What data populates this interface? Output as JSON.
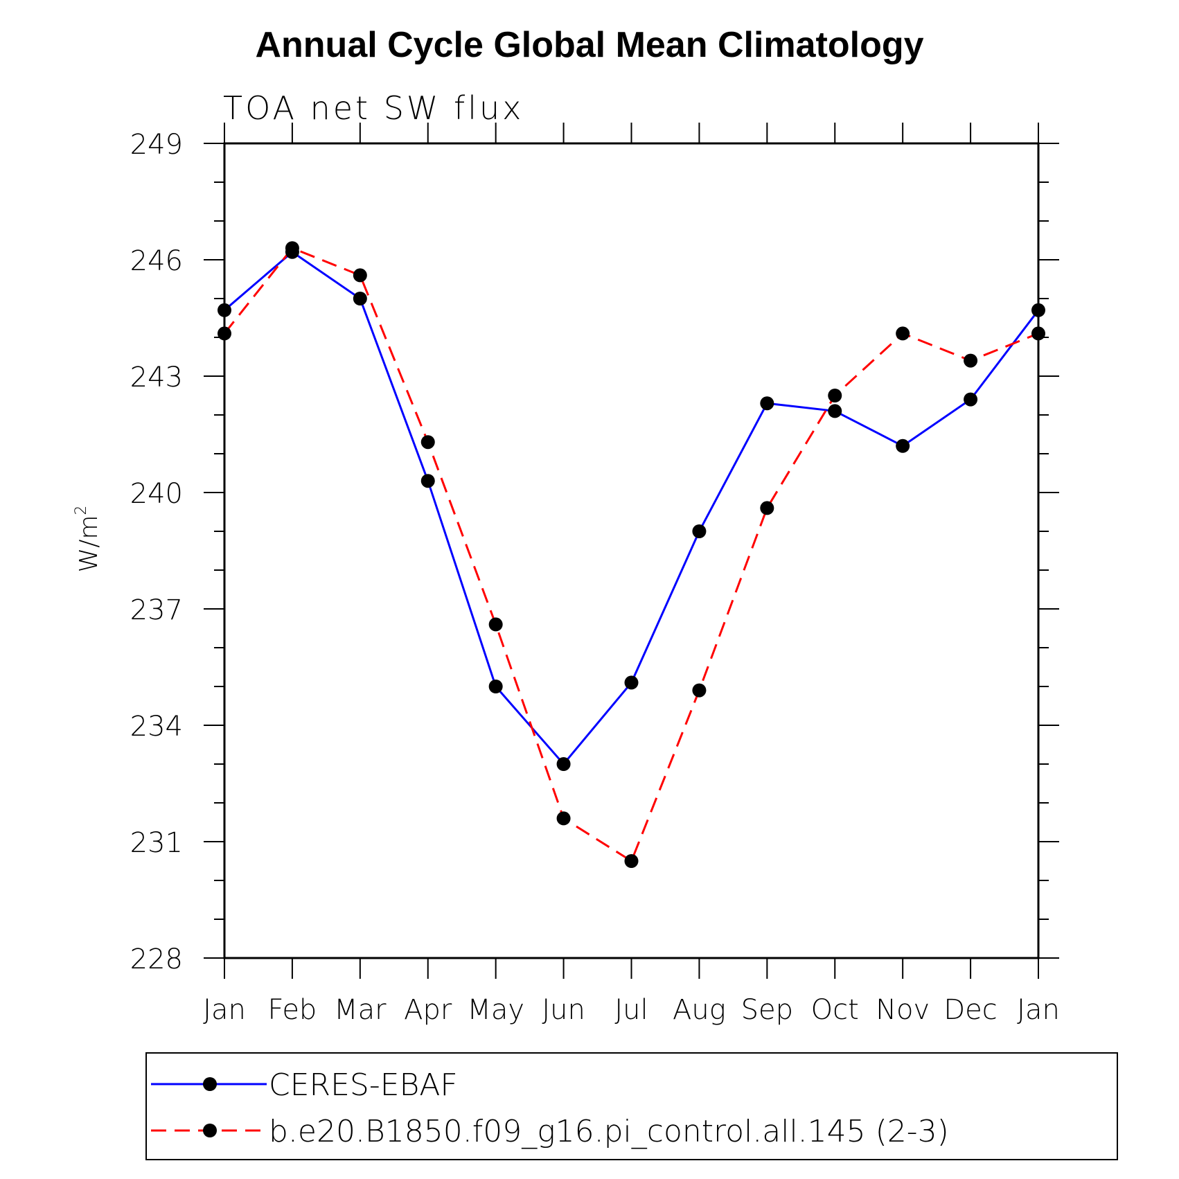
{
  "chart_data": {
    "type": "line",
    "title": "Annual Cycle Global Mean Climatology",
    "subtitle": "TOA net SW flux",
    "ylabel": "W/m",
    "ylabel_superscript": "2",
    "ylim": [
      228,
      249
    ],
    "yticks": [
      228,
      231,
      234,
      237,
      240,
      243,
      246,
      249
    ],
    "categories": [
      "Jan",
      "Feb",
      "Mar",
      "Apr",
      "May",
      "Jun",
      "Jul",
      "Aug",
      "Sep",
      "Oct",
      "Nov",
      "Dec",
      "Jan"
    ],
    "grid": false,
    "legend_position": "bottom",
    "series": [
      {
        "name": "CERES-EBAF",
        "color": "#0000ff",
        "dash": "solid",
        "values": [
          244.7,
          246.2,
          245.0,
          240.3,
          235.0,
          233.0,
          235.1,
          239.0,
          242.3,
          242.1,
          241.2,
          242.4,
          244.7
        ]
      },
      {
        "name": "b.e20.B1850.f09_g16.pi_control.all.145 (2-3)",
        "color": "#ff0000",
        "dash": "dashed",
        "values": [
          244.1,
          246.3,
          245.6,
          241.3,
          236.6,
          231.6,
          230.5,
          234.9,
          239.6,
          242.5,
          244.1,
          243.4,
          244.1
        ]
      }
    ]
  }
}
